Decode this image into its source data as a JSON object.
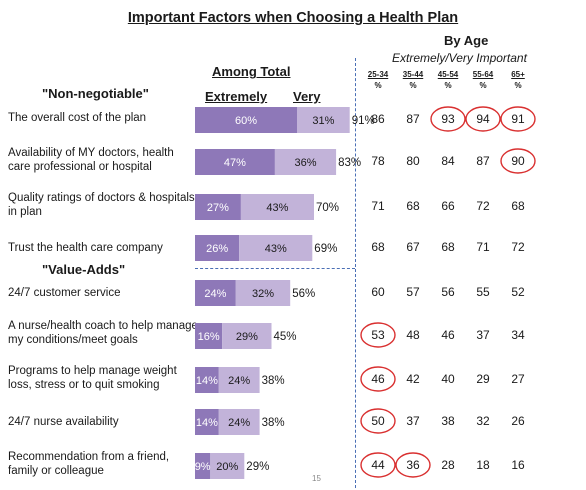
{
  "title": "Important Factors when Choosing a Health Plan",
  "by_age_heading": "By Age",
  "by_age_subheading": "Extremely/Very Important",
  "among_total_heading": "Among Total",
  "legend": {
    "extremely": "Extremely",
    "very": "Very"
  },
  "section_labels": {
    "non_negotiable": "\"Non-negotiable\"",
    "value_adds": "\"Value-Adds\""
  },
  "age_groups": [
    "25-34",
    "35-44",
    "45-54",
    "55-64",
    "65+"
  ],
  "age_unit": "%",
  "page_number": "15",
  "colors": {
    "extremely": "#8e78b8",
    "very": "#c2b3d9",
    "circle": "#d93030",
    "divider": "#4a6fb5"
  },
  "chart_data": {
    "type": "bar",
    "stacked": true,
    "orientation": "horizontal",
    "title": "Important Factors when Choosing a Health Plan",
    "categories": [
      "The overall cost of the plan",
      "Availability of MY doctors, health care professional or hospital",
      "Quality ratings of doctors & hospitals in plan",
      "Trust the health care company",
      "24/7 customer service",
      "A nurse/health coach to help manage my conditions/meet goals",
      "Programs to help manage weight loss, stress or to quit smoking",
      "24/7 nurse availability",
      "Recommendation from a friend, family or colleague"
    ],
    "series": [
      {
        "name": "Extremely",
        "values": [
          60,
          47,
          27,
          26,
          24,
          16,
          14,
          14,
          9
        ]
      },
      {
        "name": "Very",
        "values": [
          31,
          36,
          43,
          43,
          32,
          29,
          24,
          24,
          20
        ]
      }
    ],
    "totals": [
      91,
      83,
      70,
      69,
      56,
      45,
      38,
      38,
      29
    ],
    "by_age": {
      "groups": [
        "25-34",
        "35-44",
        "45-54",
        "55-64",
        "65+"
      ],
      "rows": [
        [
          86,
          87,
          93,
          94,
          91
        ],
        [
          78,
          80,
          84,
          87,
          90
        ],
        [
          71,
          68,
          66,
          72,
          68
        ],
        [
          68,
          67,
          68,
          71,
          72
        ],
        [
          60,
          57,
          56,
          55,
          52
        ],
        [
          53,
          48,
          46,
          37,
          34
        ],
        [
          46,
          42,
          40,
          29,
          27
        ],
        [
          50,
          37,
          38,
          32,
          26
        ],
        [
          44,
          36,
          28,
          18,
          16
        ]
      ],
      "circled": [
        [
          0,
          2
        ],
        [
          0,
          3
        ],
        [
          0,
          4
        ],
        [
          1,
          4
        ],
        [
          5,
          0
        ],
        [
          6,
          0
        ],
        [
          7,
          0
        ],
        [
          8,
          0
        ],
        [
          8,
          1
        ]
      ]
    }
  }
}
